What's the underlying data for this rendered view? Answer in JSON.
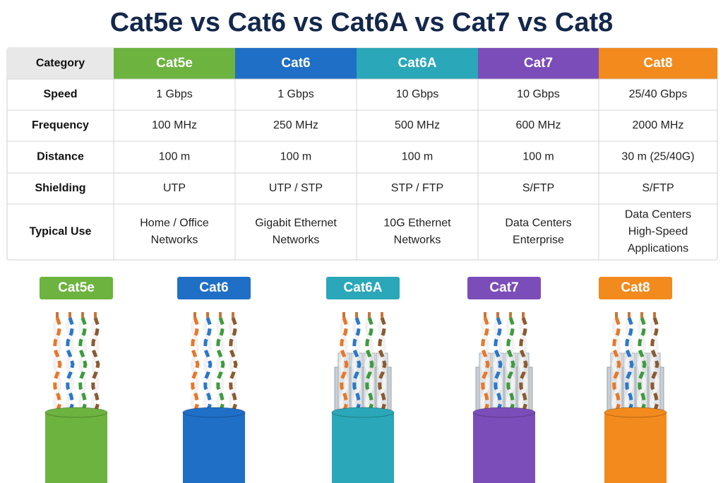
{
  "title": "Cat5e vs Cat6 vs Cat6A vs Cat7 vs Cat8",
  "table": {
    "header": [
      "Category",
      "Cat5e",
      "Cat6",
      "Cat6A",
      "Cat7",
      "Cat8"
    ],
    "rows": [
      {
        "label": "Speed",
        "cells": [
          [
            "1 Gbps"
          ],
          [
            "1 Gbps"
          ],
          [
            "10 Gbps"
          ],
          [
            "10 Gbps"
          ],
          [
            "25/40 Gbps"
          ]
        ]
      },
      {
        "label": "Frequency",
        "cells": [
          [
            "100 MHz"
          ],
          [
            "250 MHz"
          ],
          [
            "500 MHz"
          ],
          [
            "600 MHz"
          ],
          [
            "2000 MHz"
          ]
        ]
      },
      {
        "label": "Distance",
        "cells": [
          [
            "100 m"
          ],
          [
            "100 m"
          ],
          [
            "100 m"
          ],
          [
            "100 m"
          ],
          [
            "30 m (25/40G)"
          ]
        ]
      },
      {
        "label": "Shielding",
        "cells": [
          [
            "UTP"
          ],
          [
            "UTP / STP"
          ],
          [
            "STP / FTP"
          ],
          [
            "S/FTP"
          ],
          [
            "S/FTP"
          ]
        ]
      },
      {
        "label": "Typical Use",
        "cells": [
          [
            "Home / Office",
            "Networks"
          ],
          [
            "Gigabit Ethernet",
            "Networks"
          ],
          [
            "10G Ethernet",
            "Networks"
          ],
          [
            "Data Centers",
            "Enterprise"
          ],
          [
            "Data Centers",
            "High-Speed",
            "Applications"
          ]
        ]
      }
    ]
  },
  "cables": [
    "Cat5e",
    "Cat6",
    "Cat6A",
    "Cat7",
    "Cat8"
  ]
}
